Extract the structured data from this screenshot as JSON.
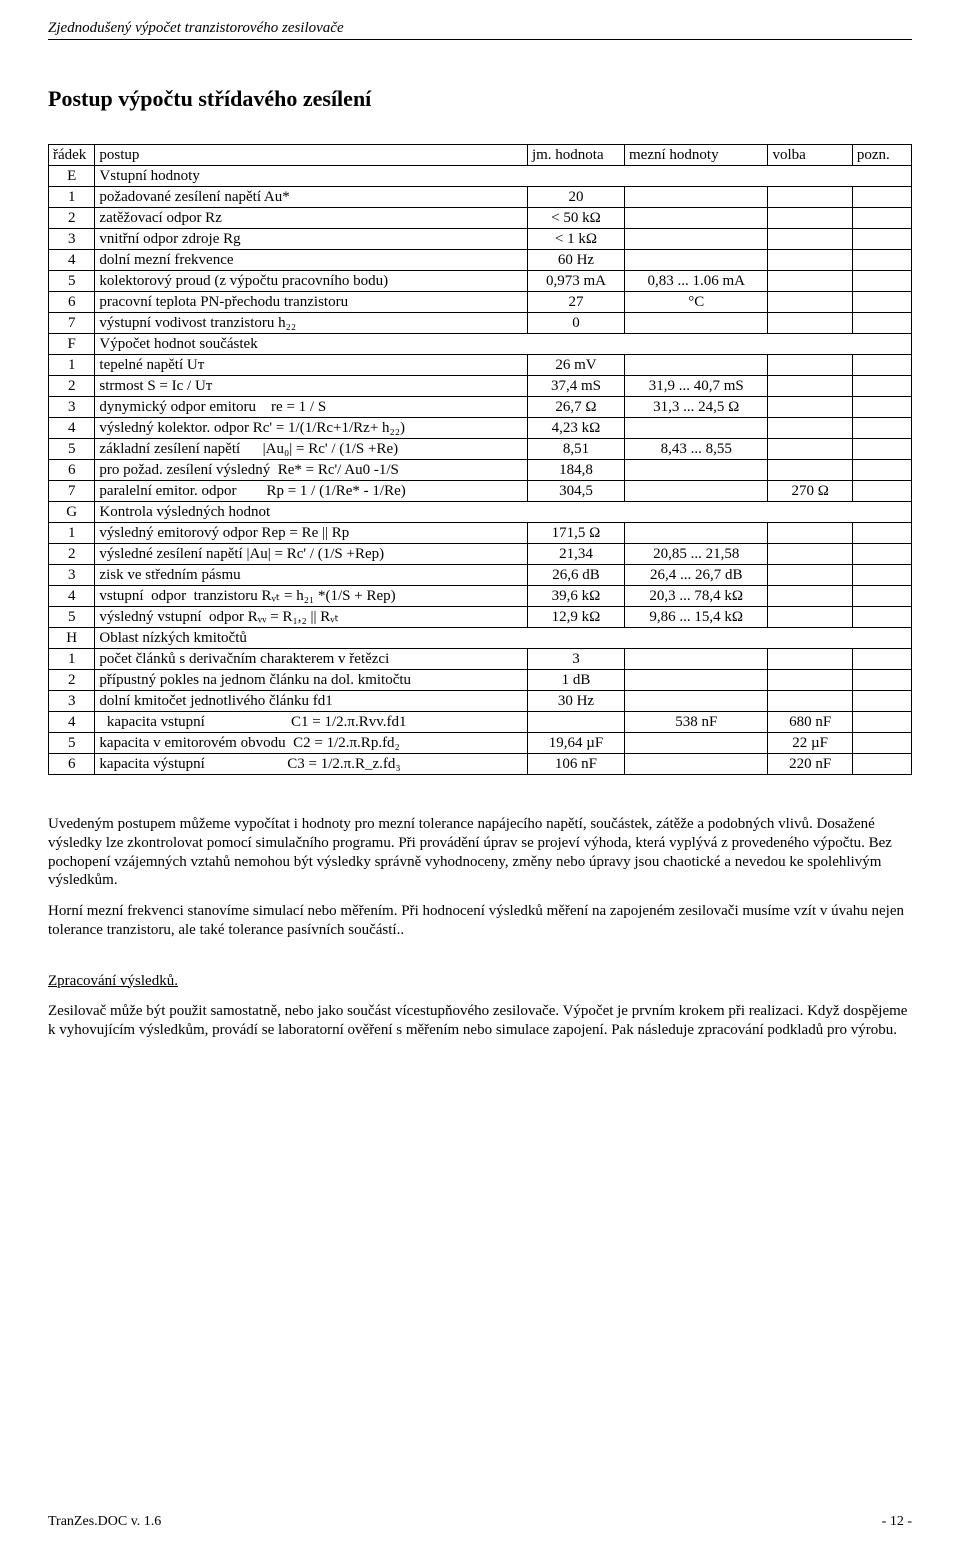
{
  "header_italic": "Zjednodušený výpočet tranzistorového zesilovače",
  "title": "Postup výpočtu střídavého zesílení",
  "table": {
    "header": {
      "c1": "řádek",
      "c2": "postup",
      "c3": "jm. hodnota",
      "c4": "mezní hodnoty",
      "c5": "volba",
      "c6": "pozn."
    },
    "sections": [
      {
        "letter": "E",
        "label": "Vstupní hodnoty",
        "rows": [
          {
            "n": "1",
            "desc": "požadované zesílení napětí Au*",
            "jm": "20",
            "mez": "",
            "vol": "",
            "poz": ""
          },
          {
            "n": "2",
            "desc": "zatěžovací odpor Rz",
            "jm": "< 50 kΩ",
            "mez": "",
            "vol": "",
            "poz": ""
          },
          {
            "n": "3",
            "desc": "vnitřní odpor zdroje Rg",
            "jm": "< 1 kΩ",
            "mez": "",
            "vol": "",
            "poz": ""
          },
          {
            "n": "4",
            "desc": "dolní mezní frekvence",
            "jm": "60 Hz",
            "mez": "",
            "vol": "",
            "poz": ""
          },
          {
            "n": "5",
            "desc": "kolektorový proud (z výpočtu pracovního bodu)",
            "jm": "0,973 mA",
            "mez": "0,83 ... 1.06 mA",
            "vol": "",
            "poz": ""
          },
          {
            "n": "6",
            "desc": "pracovní teplota PN-přechodu tranzistoru",
            "jm": "27",
            "mez": "°C",
            "vol": "",
            "poz": ""
          },
          {
            "n": "7",
            "desc": "výstupní vodivost tranzistoru h₂₂",
            "jm": "0",
            "mez": "",
            "vol": "",
            "poz": ""
          }
        ]
      },
      {
        "letter": "F",
        "label": "Výpočet hodnot součástek",
        "rows": [
          {
            "n": "1",
            "desc": "tepelné napětí Uᴛ",
            "jm": "26 mV",
            "mez": "",
            "vol": "",
            "poz": ""
          },
          {
            "n": "2",
            "desc": "strmost S = Ic / Uᴛ",
            "jm": "37,4 mS",
            "mez": "31,9 ...  40,7 mS",
            "vol": "",
            "poz": ""
          },
          {
            "n": "3",
            "desc": "dynymický odpor emitoru    re = 1 / S",
            "jm": "26,7 Ω",
            "mez": "31,3 ... 24,5 Ω",
            "vol": "",
            "poz": ""
          },
          {
            "n": "4",
            "desc": "výsledný kolektor. odpor Rc' = 1/(1/Rc+1/Rz+ h₂₂)",
            "jm": "4,23 kΩ",
            "mez": "",
            "vol": "",
            "poz": ""
          },
          {
            "n": "5",
            "desc": "základní zesílení napětí      |Au₀| = Rc' / (1/S +Re)",
            "jm": "8,51",
            "mez": "8,43 ... 8,55",
            "vol": "",
            "poz": ""
          },
          {
            "n": "6",
            "desc": "pro požad. zesílení výsledný  Re* = Rc'/ Au0 -1/S",
            "jm": "184,8",
            "mez": "",
            "vol": "",
            "poz": ""
          },
          {
            "n": "7",
            "desc": "paralelní emitor. odpor        Rp = 1 / (1/Re* - 1/Re)",
            "jm": "304,5",
            "mez": "",
            "vol": "270 Ω",
            "poz": ""
          }
        ]
      },
      {
        "letter": "G",
        "label": "Kontrola výsledných hodnot",
        "rows": [
          {
            "n": "1",
            "desc": "výsledný emitorový odpor Rep = Re || Rp",
            "jm": "171,5 Ω",
            "mez": "",
            "vol": "",
            "poz": ""
          },
          {
            "n": "2",
            "desc": "výsledné zesílení napětí |Au| = Rc' / (1/S +Rep)",
            "jm": "21,34",
            "mez": "20,85 ... 21,58",
            "vol": "",
            "poz": ""
          },
          {
            "n": "3",
            "desc": "zisk ve středním pásmu",
            "jm": "26,6 dB",
            "mez": "26,4 ... 26,7 dB",
            "vol": "",
            "poz": ""
          },
          {
            "n": "4",
            "desc": "vstupní  odpor  tranzistoru Rᵥₜ = h₂₁ *(1/S + Rep)",
            "jm": "39,6 kΩ",
            "mez": "20,3 ... 78,4 kΩ",
            "vol": "",
            "poz": ""
          },
          {
            "n": "5",
            "desc": "výsledný vstupní  odpor Rᵥᵥ = R₁,₂ || Rᵥₜ",
            "jm": "12,9 kΩ",
            "mez": "9,86 ... 15,4 kΩ",
            "vol": "",
            "poz": ""
          }
        ]
      },
      {
        "letter": "H",
        "label": "Oblast nízkých kmitočtů",
        "rows": [
          {
            "n": "1",
            "desc": "počet článků s derivačním charakterem v řetězci",
            "jm": "3",
            "mez": "",
            "vol": "",
            "poz": ""
          },
          {
            "n": "2",
            "desc": "přípustný pokles na jednom článku na dol. kmitočtu",
            "jm": "1 dB",
            "mez": "",
            "vol": "",
            "poz": ""
          },
          {
            "n": "3",
            "desc": "dolní kmitočet jednotlivého článku fd1",
            "jm": "30 Hz",
            "mez": "",
            "vol": "",
            "poz": ""
          },
          {
            "n": "4",
            "desc": "  kapacita vstupní                       C1 = 1/2.π.Rvv.fd1",
            "jm": "",
            "mez": "538 nF",
            "vol": "680 nF",
            "poz": ""
          },
          {
            "n": "5",
            "desc": "kapacita v emitorovém obvodu  C2 = 1/2.π.Rp.fd₂",
            "jm": "19,64 µF",
            "mez": "",
            "vol": "22 µF",
            "poz": ""
          },
          {
            "n": "6",
            "desc": "kapacita výstupní                      C3 = 1/2.π.R_z.fd₃",
            "jm": "106 nF",
            "mez": "",
            "vol": "220 nF",
            "poz": ""
          }
        ]
      }
    ]
  },
  "para1": "Uvedeným postupem můžeme vypočítat i hodnoty pro mezní tolerance napájecího napětí, součástek, zátěže a podobných vlivů. Dosažené výsledky lze zkontrolovat pomocí simulačního programu. Při provádění úprav se projeví výhoda, která vyplývá z provedeného výpočtu. Bez pochopení vzájemných vztahů nemohou být výsledky správně vyhodnoceny, změny nebo úpravy jsou chaotické a nevedou ke spolehlivým výsledkům.",
  "para2": "Horní mezní frekvenci stanovíme simulací nebo měřením. Při hodnocení výsledků měření na zapojeném zesilovači musíme vzít v úvahu nejen tolerance tranzistoru, ale také tolerance pasívních součástí..",
  "para3_head": "Zpracování výsledků.",
  "para3": "Zesilovač může být použit samostatně, nebo jako součást vícestupňového zesilovače. Výpočet je prvním krokem při realizaci. Když dospějeme k vyhovujícím výsledkům, provádí se laboratorní ověření s měřením  nebo simulace zapojení.  Pak následuje zpracování podkladů pro výrobu.",
  "footer_left": "TranZes.DOC v. 1.6",
  "footer_right": "- 12 -"
}
